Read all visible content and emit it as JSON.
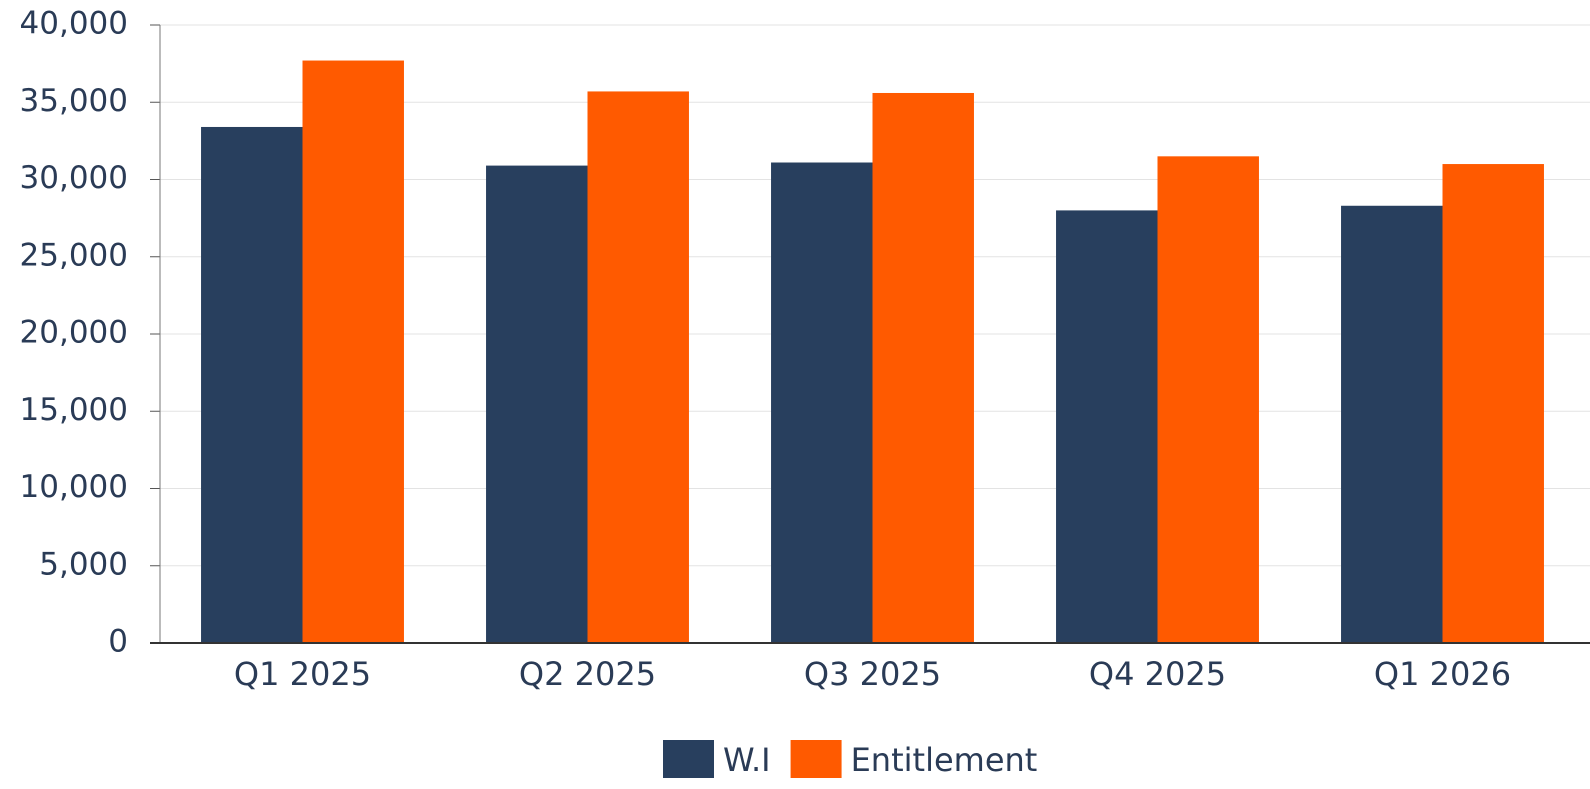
{
  "chart_data": {
    "type": "bar",
    "categories": [
      "Q1 2025",
      "Q2 2025",
      "Q3 2025",
      "Q4 2025",
      "Q1 2026"
    ],
    "series": [
      {
        "name": "W.I",
        "color": "#283f5e",
        "values": [
          33400,
          30900,
          31100,
          28000,
          28300
        ]
      },
      {
        "name": "Entitlement",
        "color": "#ff5a00",
        "values": [
          37700,
          35700,
          35600,
          31500,
          31000
        ]
      }
    ],
    "ylim": [
      0,
      40000
    ],
    "yticks": [
      0,
      {
        "value": 5000,
        "label": "5,000"
      },
      {
        "value": 10000,
        "label": "10,000"
      },
      {
        "value": 15000,
        "label": "15,000"
      },
      {
        "value": 20000,
        "label": "20,000"
      },
      {
        "value": 25000,
        "label": "25,000"
      },
      {
        "value": 30000,
        "label": "30,000"
      },
      {
        "value": 35000,
        "label": "35,000"
      },
      {
        "value": 40000,
        "label": "40,000"
      }
    ],
    "grid": true,
    "legend": "bottom"
  }
}
